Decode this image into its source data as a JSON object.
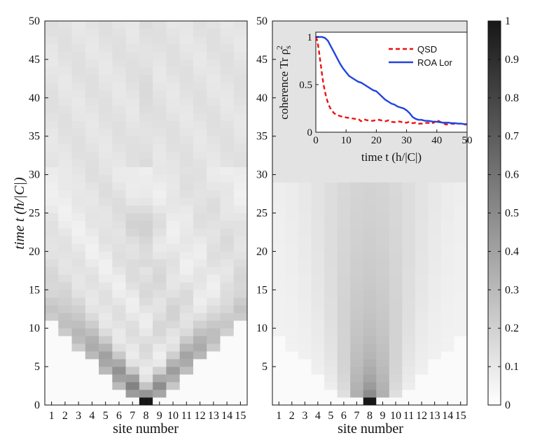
{
  "chart_data": [
    {
      "type": "heatmap",
      "panel": "left",
      "xlabel": "site number",
      "ylabel": "time  t (h/|C|)",
      "x_ticks": [
        "1",
        "2",
        "3",
        "4",
        "5",
        "6",
        "7",
        "8",
        "9",
        "10",
        "11",
        "12",
        "13",
        "14",
        "15"
      ],
      "y_ticks": [
        "0",
        "5",
        "10",
        "15",
        "20",
        "25",
        "30",
        "35",
        "40",
        "45",
        "50"
      ],
      "ylim": [
        0,
        50
      ],
      "initial_site": 8,
      "description_values": "population on 15 sites vs time; starts localized on site 8 (value 1), spreads ballistically and interferes"
    },
    {
      "type": "heatmap",
      "panel": "right",
      "xlabel": "site number",
      "x_ticks": [
        "1",
        "2",
        "3",
        "4",
        "5",
        "6",
        "7",
        "8",
        "9",
        "10",
        "11",
        "12",
        "13",
        "14",
        "15"
      ],
      "y_ticks": [
        "5",
        "10",
        "15",
        "20",
        "25",
        "30",
        "35",
        "40",
        "45",
        "50"
      ],
      "ylim": [
        0,
        50
      ],
      "initial_site": 8
    },
    {
      "type": "colorbar",
      "ticks": [
        "0",
        "0.1",
        "0.2",
        "0.3",
        "0.4",
        "0.5",
        "0.6",
        "0.7",
        "0.8",
        "0.9",
        "1"
      ],
      "range": [
        0,
        1
      ]
    },
    {
      "type": "line",
      "panel": "inset",
      "ylabel": "coherence Tr ρ",
      "ylabel_sub": "s",
      "ylabel_sup": "2",
      "xlabel": "time  t (h/|C|)",
      "x_ticks": [
        "0",
        "10",
        "20",
        "30",
        "40",
        "50"
      ],
      "y_ticks": [
        "0",
        "0.5",
        "1"
      ],
      "xlim": [
        0,
        50
      ],
      "ylim": [
        0,
        1.05
      ],
      "series": [
        {
          "name": "QSD",
          "color": "#ee1111",
          "style": "dashed",
          "x": [
            0,
            0.5,
            1,
            1.5,
            2,
            2.5,
            3,
            3.5,
            4,
            4.5,
            5,
            5.5,
            6,
            7,
            8,
            9,
            10,
            11,
            12,
            13,
            14,
            15,
            16,
            17,
            18,
            19,
            20,
            21,
            22,
            23,
            24,
            25,
            26,
            27,
            28,
            29,
            30,
            31,
            32,
            33,
            34,
            35,
            36,
            37,
            38,
            39,
            40,
            41,
            42,
            43,
            44,
            45,
            46,
            47,
            48,
            49,
            50
          ],
          "values": [
            1.0,
            0.96,
            0.86,
            0.74,
            0.62,
            0.51,
            0.43,
            0.36,
            0.31,
            0.27,
            0.24,
            0.22,
            0.2,
            0.18,
            0.17,
            0.16,
            0.155,
            0.15,
            0.145,
            0.14,
            0.14,
            0.115,
            0.135,
            0.125,
            0.12,
            0.12,
            0.13,
            0.13,
            0.12,
            0.115,
            0.125,
            0.11,
            0.105,
            0.115,
            0.11,
            0.1,
            0.1,
            0.11,
            0.095,
            0.1,
            0.09,
            0.09,
            0.095,
            0.1,
            0.09,
            0.1,
            0.13,
            0.11,
            0.1,
            0.08,
            0.085,
            0.09,
            0.085,
            0.09,
            0.09,
            0.08,
            0.08
          ]
        },
        {
          "name": "ROA Lor",
          "color": "#2244dd",
          "style": "solid",
          "x": [
            0,
            1,
            2,
            3,
            4,
            5,
            6,
            7,
            8,
            9,
            10,
            11,
            12,
            13,
            14,
            15,
            16,
            17,
            18,
            19,
            20,
            21,
            22,
            23,
            24,
            25,
            26,
            27,
            28,
            29,
            30,
            31,
            32,
            33,
            34,
            35,
            36,
            37,
            38,
            39,
            40,
            41,
            42,
            43,
            44,
            45,
            46,
            47,
            48,
            49,
            50
          ],
          "values": [
            1.0,
            1.0,
            1.0,
            0.99,
            0.96,
            0.9,
            0.84,
            0.78,
            0.72,
            0.67,
            0.63,
            0.59,
            0.57,
            0.55,
            0.53,
            0.52,
            0.5,
            0.48,
            0.46,
            0.44,
            0.43,
            0.4,
            0.37,
            0.34,
            0.32,
            0.3,
            0.29,
            0.27,
            0.26,
            0.25,
            0.23,
            0.2,
            0.16,
            0.14,
            0.13,
            0.13,
            0.12,
            0.12,
            0.115,
            0.11,
            0.11,
            0.105,
            0.1,
            0.1,
            0.1,
            0.095,
            0.095,
            0.09,
            0.09,
            0.085,
            0.085
          ]
        }
      ]
    }
  ]
}
